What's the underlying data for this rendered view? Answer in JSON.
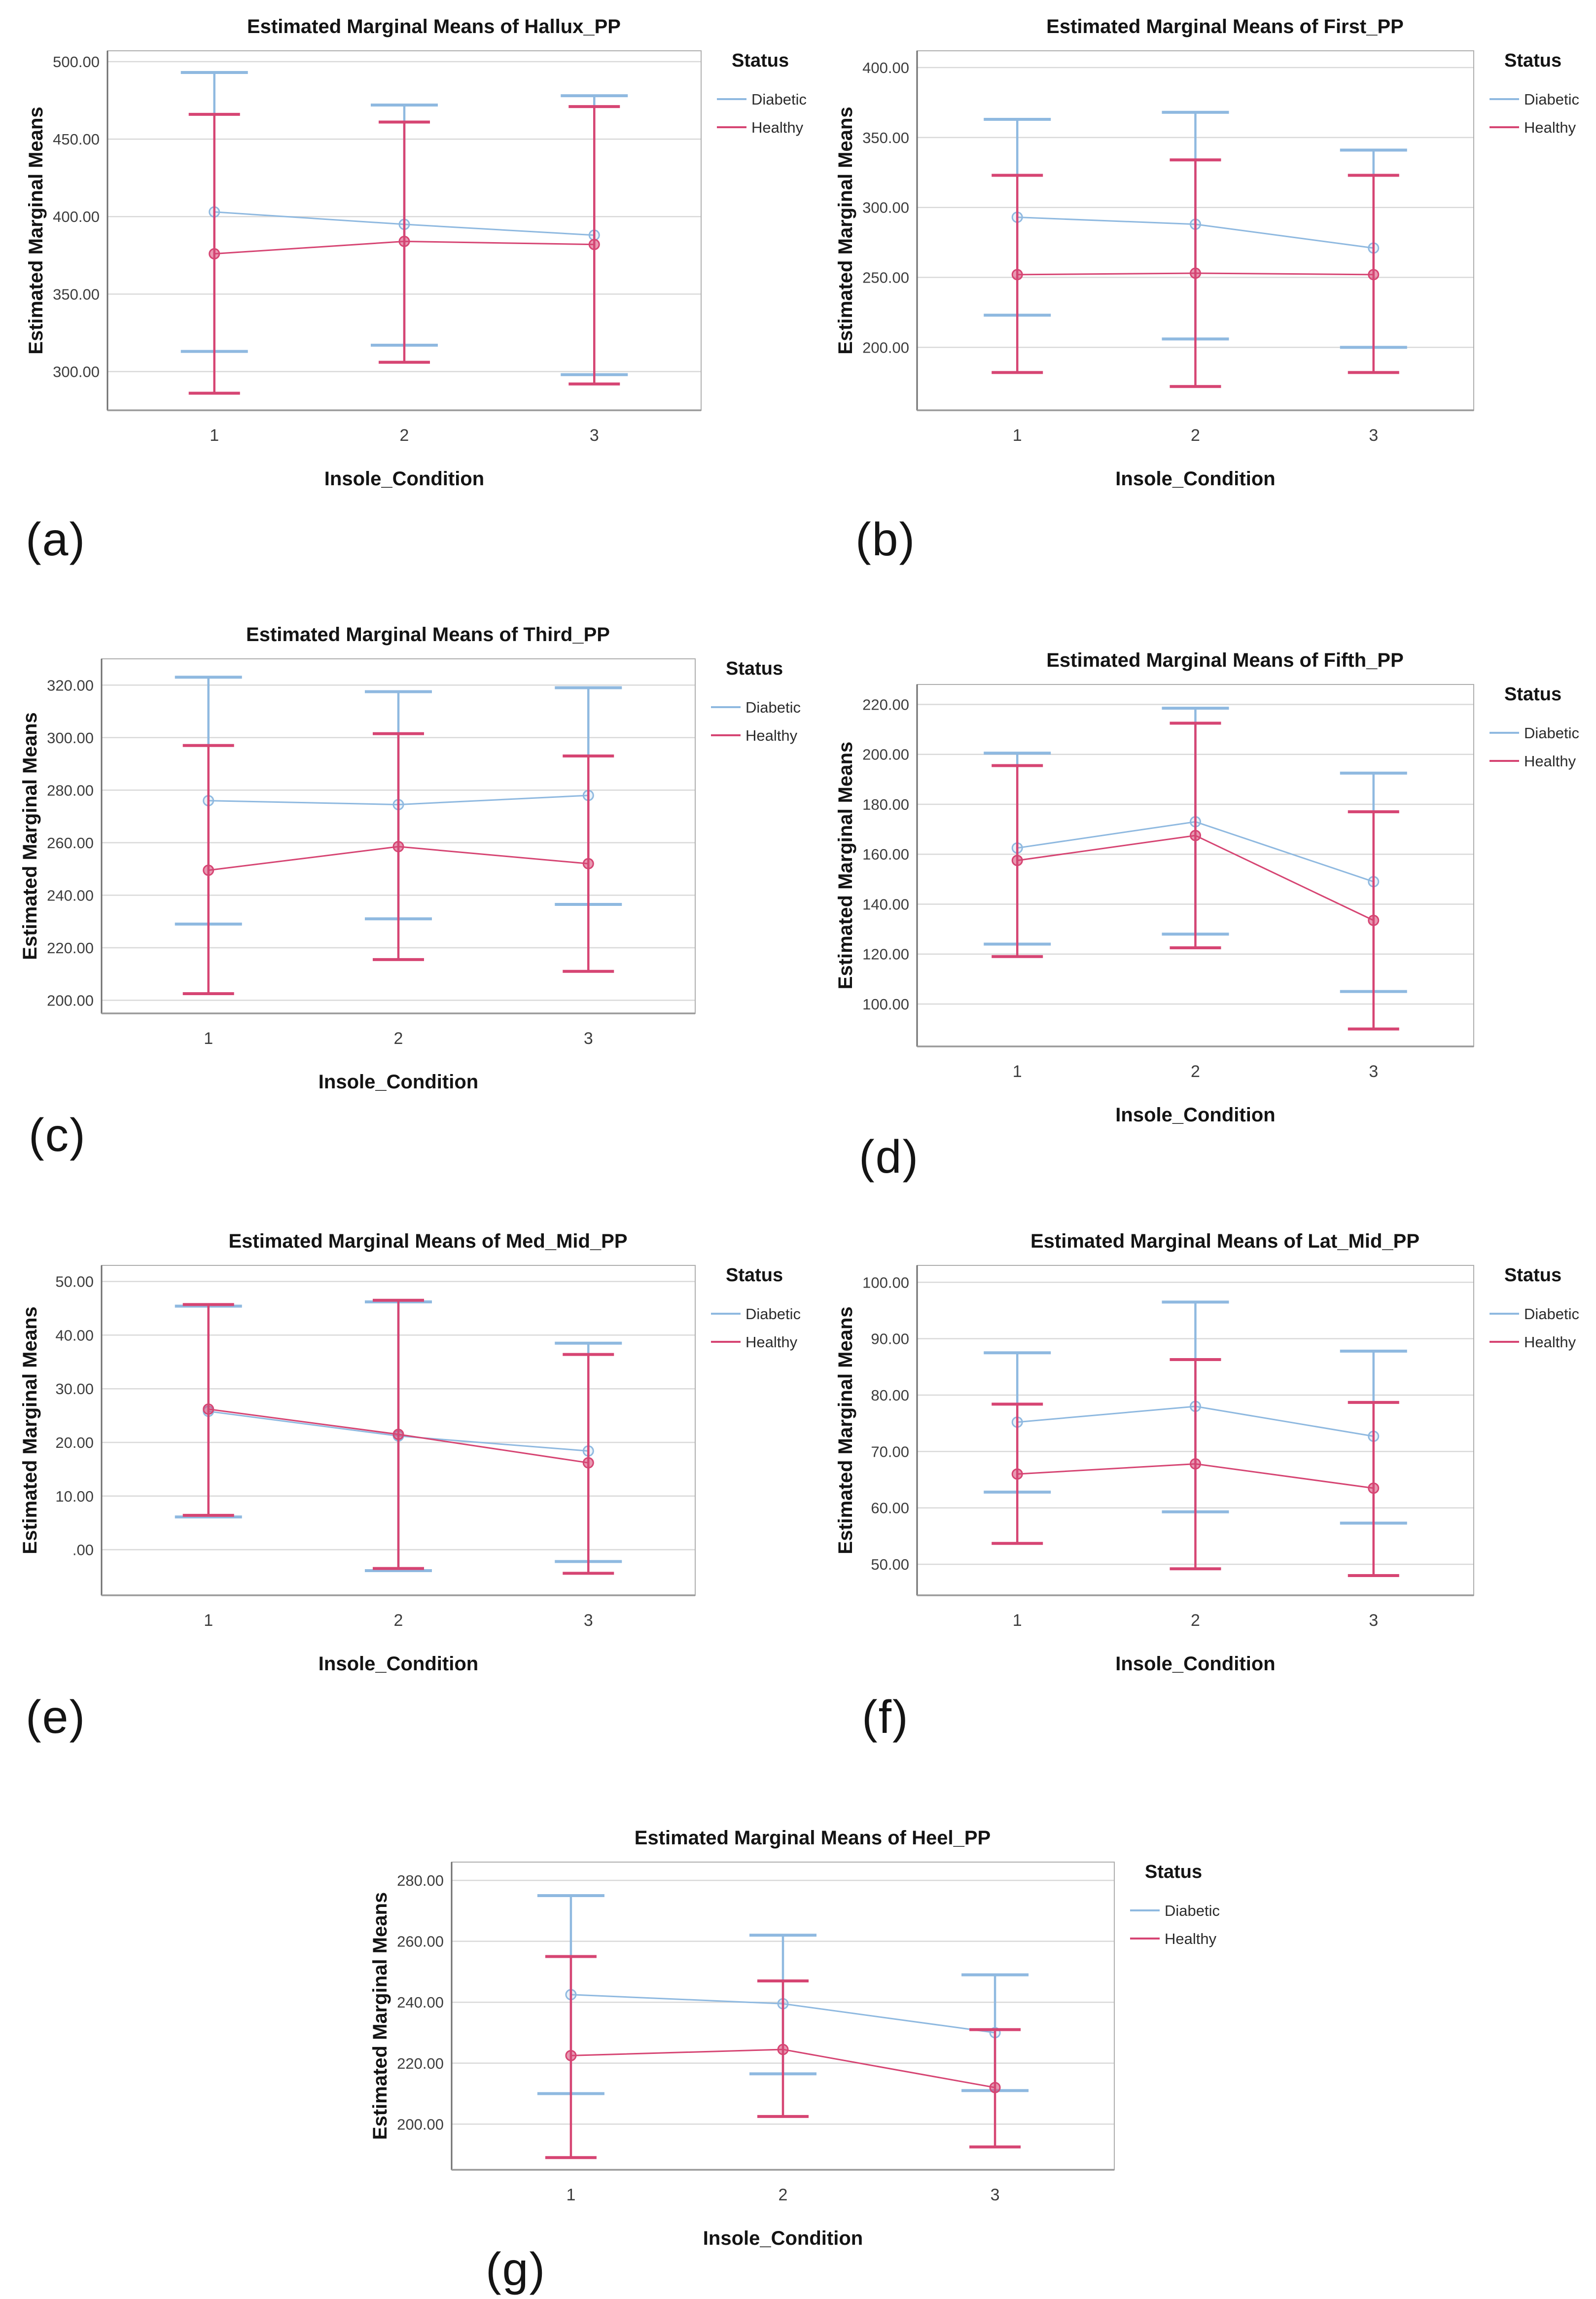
{
  "background": "#ffffff",
  "chart_data": [
    {
      "type": "line",
      "panel_label": "(a)",
      "title": "Estimated Marginal Means of Hallux_PP",
      "xlabel": "Insole_Condition",
      "ylabel": "Estimated Marginal Means",
      "legend_title": "Status",
      "legend_position": "right",
      "grid": true,
      "categories": [
        "1",
        "2",
        "3"
      ],
      "yticks": [
        300,
        350,
        400,
        450,
        500
      ],
      "ytick_labels": [
        "300.00",
        "350.00",
        "400.00",
        "450.00",
        "500.00"
      ],
      "ylim": [
        275,
        507
      ],
      "series": [
        {
          "name": "Diabetic",
          "color": "#8FB9E0",
          "means": [
            403,
            395,
            388
          ],
          "ci_low": [
            313,
            317,
            298
          ],
          "ci_high": [
            493,
            472,
            478
          ]
        },
        {
          "name": "Healthy",
          "color": "#D64573",
          "means": [
            376,
            384,
            382
          ],
          "ci_low": [
            286,
            306,
            292
          ],
          "ci_high": [
            466,
            461,
            471
          ]
        }
      ]
    },
    {
      "type": "line",
      "panel_label": "(b)",
      "title": "Estimated Marginal Means of First_PP",
      "xlabel": "Insole_Condition",
      "ylabel": "Estimated Marginal Means",
      "legend_title": "Status",
      "legend_position": "right",
      "grid": true,
      "categories": [
        "1",
        "2",
        "3"
      ],
      "yticks": [
        200,
        250,
        300,
        350,
        400
      ],
      "ytick_labels": [
        "200.00",
        "250.00",
        "300.00",
        "350.00",
        "400.00"
      ],
      "ylim": [
        155,
        412
      ],
      "series": [
        {
          "name": "Diabetic",
          "color": "#8FB9E0",
          "means": [
            293,
            288,
            271
          ],
          "ci_low": [
            223,
            206,
            200
          ],
          "ci_high": [
            363,
            368,
            341
          ]
        },
        {
          "name": "Healthy",
          "color": "#D64573",
          "means": [
            252,
            253,
            252
          ],
          "ci_low": [
            182,
            172,
            182
          ],
          "ci_high": [
            323,
            334,
            323
          ]
        }
      ]
    },
    {
      "type": "line",
      "panel_label": "(c)",
      "title": "Estimated Marginal Means of Third_PP",
      "xlabel": "Insole_Condition",
      "ylabel": "Estimated Marginal Means",
      "legend_title": "Status",
      "legend_position": "right",
      "grid": true,
      "categories": [
        "1",
        "2",
        "3"
      ],
      "yticks": [
        200,
        220,
        240,
        260,
        280,
        300,
        320
      ],
      "ytick_labels": [
        "200.00",
        "220.00",
        "240.00",
        "260.00",
        "280.00",
        "300.00",
        "320.00"
      ],
      "ylim": [
        195,
        330
      ],
      "series": [
        {
          "name": "Diabetic",
          "color": "#8FB9E0",
          "means": [
            276,
            274.5,
            278
          ],
          "ci_low": [
            229,
            231,
            236.5
          ],
          "ci_high": [
            323,
            317.5,
            319
          ]
        },
        {
          "name": "Healthy",
          "color": "#D64573",
          "means": [
            249.5,
            258.5,
            252
          ],
          "ci_low": [
            202.5,
            215.5,
            211
          ],
          "ci_high": [
            297,
            301.5,
            293
          ]
        }
      ]
    },
    {
      "type": "line",
      "panel_label": "(d)",
      "title": "Estimated Marginal Means of Fifth_PP",
      "xlabel": "Insole_Condition",
      "ylabel": "Estimated Marginal Means",
      "legend_title": "Status",
      "legend_position": "right",
      "grid": true,
      "categories": [
        "1",
        "2",
        "3"
      ],
      "yticks": [
        100,
        120,
        140,
        160,
        180,
        200,
        220
      ],
      "ytick_labels": [
        "100.00",
        "120.00",
        "140.00",
        "160.00",
        "180.00",
        "200.00",
        "220.00"
      ],
      "ylim": [
        83,
        228
      ],
      "series": [
        {
          "name": "Diabetic",
          "color": "#8FB9E0",
          "means": [
            162.5,
            173,
            149
          ],
          "ci_low": [
            124,
            128,
            105
          ],
          "ci_high": [
            200.5,
            218.5,
            192.5
          ]
        },
        {
          "name": "Healthy",
          "color": "#D64573",
          "means": [
            157.5,
            167.5,
            133.5
          ],
          "ci_low": [
            119,
            122.5,
            90
          ],
          "ci_high": [
            195.5,
            212.5,
            177
          ]
        }
      ]
    },
    {
      "type": "line",
      "panel_label": "(e)",
      "title": "Estimated Marginal Means of Med_Mid_PP",
      "xlabel": "Insole_Condition",
      "ylabel": "Estimated Marginal Means",
      "legend_title": "Status",
      "legend_position": "right",
      "grid": true,
      "categories": [
        "1",
        "2",
        "3"
      ],
      "yticks": [
        0,
        10,
        20,
        30,
        40,
        50
      ],
      "ytick_labels": [
        ".00",
        "10.00",
        "20.00",
        "30.00",
        "40.00",
        "50.00"
      ],
      "ylim": [
        -8.5,
        53
      ],
      "series": [
        {
          "name": "Diabetic",
          "color": "#8FB9E0",
          "means": [
            25.8,
            21.2,
            18.4
          ],
          "ci_low": [
            6.1,
            -3.9,
            -2.2
          ],
          "ci_high": [
            45.4,
            46.2,
            38.5
          ]
        },
        {
          "name": "Healthy",
          "color": "#D64573",
          "means": [
            26.2,
            21.5,
            16.2
          ],
          "ci_low": [
            6.4,
            -3.5,
            -4.4
          ],
          "ci_high": [
            45.7,
            46.5,
            36.4
          ]
        }
      ]
    },
    {
      "type": "line",
      "panel_label": "(f)",
      "title": "Estimated Marginal Means of Lat_Mid_PP",
      "xlabel": "Insole_Condition",
      "ylabel": "Estimated Marginal Means",
      "legend_title": "Status",
      "legend_position": "right",
      "grid": true,
      "categories": [
        "1",
        "2",
        "3"
      ],
      "yticks": [
        50,
        60,
        70,
        80,
        90,
        100
      ],
      "ytick_labels": [
        "50.00",
        "60.00",
        "70.00",
        "80.00",
        "90.00",
        "100.00"
      ],
      "ylim": [
        44.5,
        103
      ],
      "series": [
        {
          "name": "Diabetic",
          "color": "#8FB9E0",
          "means": [
            75.2,
            78,
            72.7
          ],
          "ci_low": [
            62.8,
            59.3,
            57.3
          ],
          "ci_high": [
            87.5,
            96.5,
            87.8
          ]
        },
        {
          "name": "Healthy",
          "color": "#D64573",
          "means": [
            66,
            67.8,
            63.5
          ],
          "ci_low": [
            53.7,
            49.2,
            48
          ],
          "ci_high": [
            78.4,
            86.3,
            78.7
          ]
        }
      ]
    },
    {
      "type": "line",
      "panel_label": "(g)",
      "title": "Estimated Marginal Means of Heel_PP",
      "xlabel": "Insole_Condition",
      "ylabel": "Estimated Marginal Means",
      "legend_title": "Status",
      "legend_position": "right",
      "grid": true,
      "categories": [
        "1",
        "2",
        "3"
      ],
      "yticks": [
        200,
        220,
        240,
        260,
        280
      ],
      "ytick_labels": [
        "200.00",
        "220.00",
        "240.00",
        "260.00",
        "280.00"
      ],
      "ylim": [
        185,
        286
      ],
      "series": [
        {
          "name": "Diabetic",
          "color": "#8FB9E0",
          "means": [
            242.5,
            239.5,
            230
          ],
          "ci_low": [
            210,
            216.5,
            211
          ],
          "ci_high": [
            275,
            262,
            249
          ]
        },
        {
          "name": "Healthy",
          "color": "#D64573",
          "means": [
            222.5,
            224.5,
            212
          ],
          "ci_low": [
            189,
            202.5,
            192.5
          ],
          "ci_high": [
            255,
            247,
            231
          ]
        }
      ]
    }
  ],
  "style": {
    "grid_color": "#d9d9d9",
    "frame_color": "#aeaeae",
    "axis_spine_color": "#6e6e6e",
    "tick_text_color": "#3d3d3d",
    "label_text_color": "#141414"
  }
}
